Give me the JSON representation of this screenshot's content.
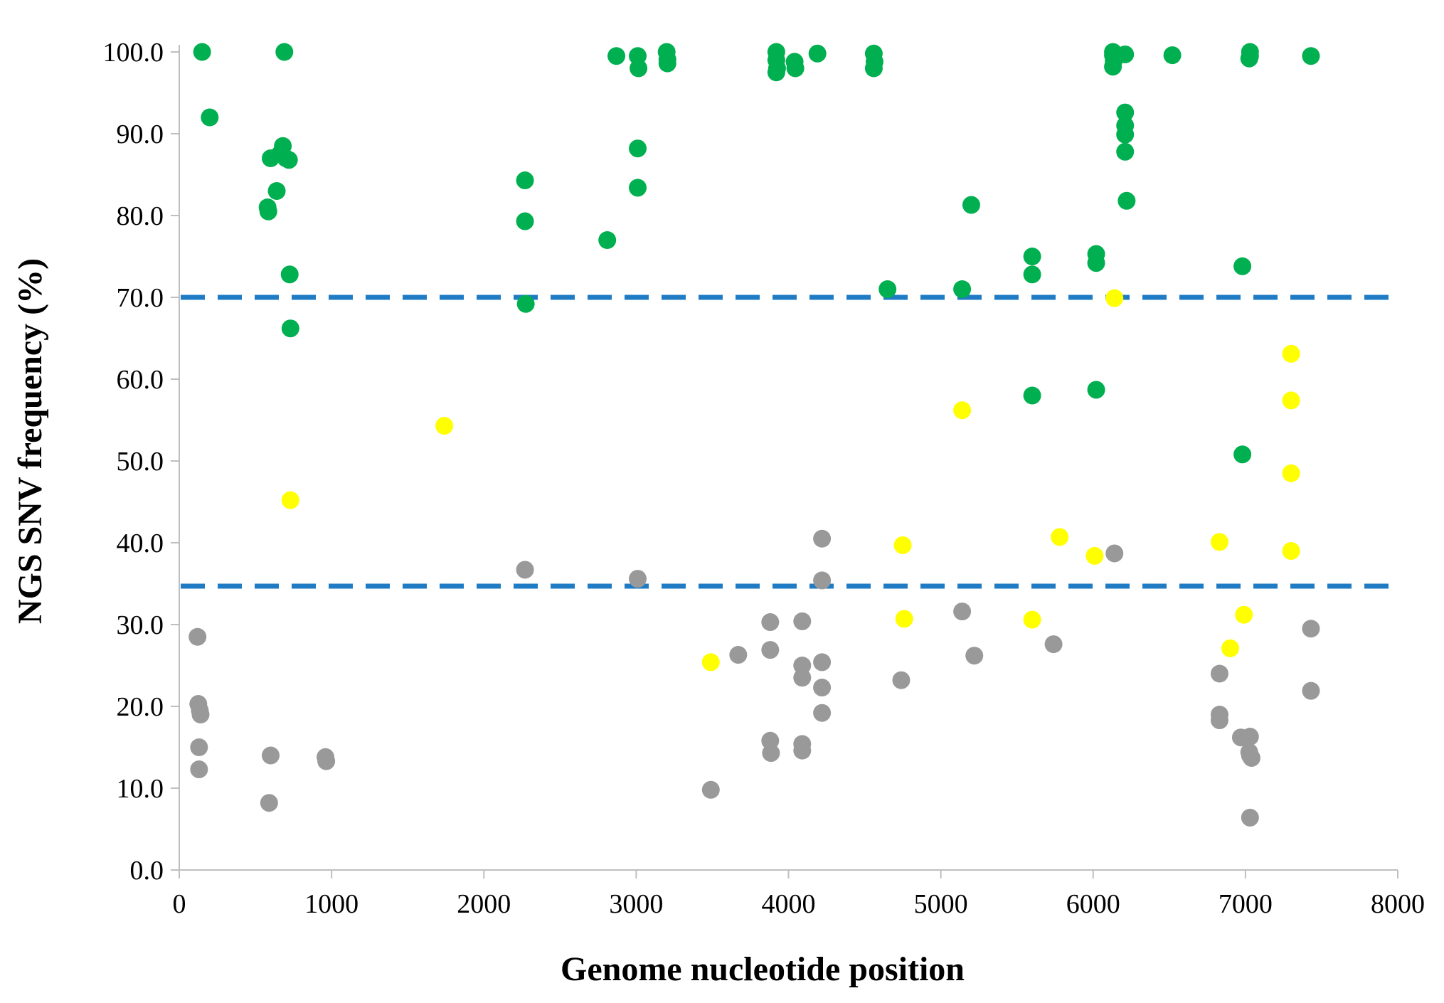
{
  "chart_data": {
    "type": "scatter",
    "title": "",
    "xlabel": "Genome nucleotide position",
    "ylabel": "NGS SNV frequency (%)",
    "xlim": [
      0,
      8000
    ],
    "ylim": [
      0,
      100
    ],
    "x_ticks": [
      "0",
      "1000",
      "2000",
      "3000",
      "4000",
      "5000",
      "6000",
      "7000",
      "8000"
    ],
    "y_ticks": [
      "0.0",
      "10.0",
      "20.0",
      "30.0",
      "40.0",
      "50.0",
      "60.0",
      "70.0",
      "80.0",
      "90.0",
      "100.0"
    ],
    "grid": false,
    "thresholds": [
      {
        "name": "upper-threshold",
        "y": 70,
        "color": "#1f7cc4"
      },
      {
        "name": "lower-threshold",
        "y": 34.7,
        "color": "#1f7cc4"
      }
    ],
    "series": [
      {
        "name": "green",
        "color": "#00b050",
        "points": [
          [
            150,
            100
          ],
          [
            200,
            92
          ],
          [
            580,
            81
          ],
          [
            585,
            80.5
          ],
          [
            600,
            87
          ],
          [
            640,
            83
          ],
          [
            660,
            87.5
          ],
          [
            680,
            88.5
          ],
          [
            690,
            100
          ],
          [
            700,
            87
          ],
          [
            720,
            86.8
          ],
          [
            725,
            72.8
          ],
          [
            730,
            66.2
          ],
          [
            2270,
            84.3
          ],
          [
            2270,
            79.3
          ],
          [
            2275,
            69.2
          ],
          [
            2810,
            77
          ],
          [
            2870,
            99.5
          ],
          [
            3010,
            99.5
          ],
          [
            3015,
            98
          ],
          [
            3010,
            88.2
          ],
          [
            3010,
            83.4
          ],
          [
            3200,
            100
          ],
          [
            3205,
            99.1
          ],
          [
            3205,
            98.6
          ],
          [
            3920,
            100
          ],
          [
            3920,
            99
          ],
          [
            3925,
            98
          ],
          [
            3920,
            97.5
          ],
          [
            4040,
            98.8
          ],
          [
            4045,
            98
          ],
          [
            4190,
            99.8
          ],
          [
            4560,
            99.8
          ],
          [
            4565,
            98.8
          ],
          [
            4560,
            98
          ],
          [
            4650,
            71
          ],
          [
            5140,
            71
          ],
          [
            5200,
            81.3
          ],
          [
            5600,
            75
          ],
          [
            5600,
            72.8
          ],
          [
            5600,
            58
          ],
          [
            6020,
            75.3
          ],
          [
            6020,
            74.2
          ],
          [
            6020,
            58.7
          ],
          [
            6130,
            100
          ],
          [
            6130,
            99.6
          ],
          [
            6135,
            98.9
          ],
          [
            6130,
            98.2
          ],
          [
            6210,
            99.7
          ],
          [
            6210,
            92.6
          ],
          [
            6210,
            91
          ],
          [
            6210,
            89.9
          ],
          [
            6210,
            87.8
          ],
          [
            6220,
            81.8
          ],
          [
            6520,
            99.6
          ],
          [
            6980,
            73.8
          ],
          [
            6980,
            50.8
          ],
          [
            7030,
            100
          ],
          [
            7030,
            99.5
          ],
          [
            7025,
            99.2
          ],
          [
            7430,
            99.5
          ]
        ]
      },
      {
        "name": "yellow",
        "color": "#ffff00",
        "points": [
          [
            730,
            45.2
          ],
          [
            1740,
            54.3
          ],
          [
            3490,
            25.4
          ],
          [
            4750,
            39.7
          ],
          [
            4760,
            30.7
          ],
          [
            5140,
            56.2
          ],
          [
            5600,
            30.6
          ],
          [
            5780,
            40.7
          ],
          [
            6010,
            38.4
          ],
          [
            6140,
            69.9
          ],
          [
            6830,
            40.1
          ],
          [
            6900,
            27.1
          ],
          [
            6990,
            31.2
          ],
          [
            7300,
            63.1
          ],
          [
            7300,
            57.4
          ],
          [
            7300,
            48.5
          ],
          [
            7300,
            39
          ]
        ]
      },
      {
        "name": "grey",
        "color": "#999999",
        "points": [
          [
            120,
            28.5
          ],
          [
            125,
            20.3
          ],
          [
            135,
            19.5
          ],
          [
            140,
            19
          ],
          [
            130,
            15
          ],
          [
            130,
            12.3
          ],
          [
            590,
            8.2
          ],
          [
            600,
            14
          ],
          [
            960,
            13.8
          ],
          [
            965,
            13.3
          ],
          [
            2270,
            36.7
          ],
          [
            3010,
            35.6
          ],
          [
            3490,
            9.8
          ],
          [
            3670,
            26.3
          ],
          [
            3880,
            30.3
          ],
          [
            3880,
            26.9
          ],
          [
            3880,
            15.8
          ],
          [
            3885,
            14.3
          ],
          [
            4090,
            30.4
          ],
          [
            4090,
            25
          ],
          [
            4090,
            23.5
          ],
          [
            4090,
            15.4
          ],
          [
            4090,
            14.6
          ],
          [
            4220,
            40.5
          ],
          [
            4220,
            35.4
          ],
          [
            4220,
            25.4
          ],
          [
            4220,
            22.3
          ],
          [
            4220,
            19.2
          ],
          [
            4740,
            23.2
          ],
          [
            5140,
            31.6
          ],
          [
            5220,
            26.2
          ],
          [
            5740,
            27.6
          ],
          [
            6140,
            38.7
          ],
          [
            6830,
            24
          ],
          [
            6830,
            19
          ],
          [
            6830,
            18.3
          ],
          [
            6970,
            16.2
          ],
          [
            7030,
            16.3
          ],
          [
            7025,
            14.4
          ],
          [
            7030,
            14
          ],
          [
            7040,
            13.7
          ],
          [
            7030,
            6.4
          ],
          [
            7430,
            29.5
          ],
          [
            7430,
            21.9
          ]
        ]
      }
    ]
  }
}
